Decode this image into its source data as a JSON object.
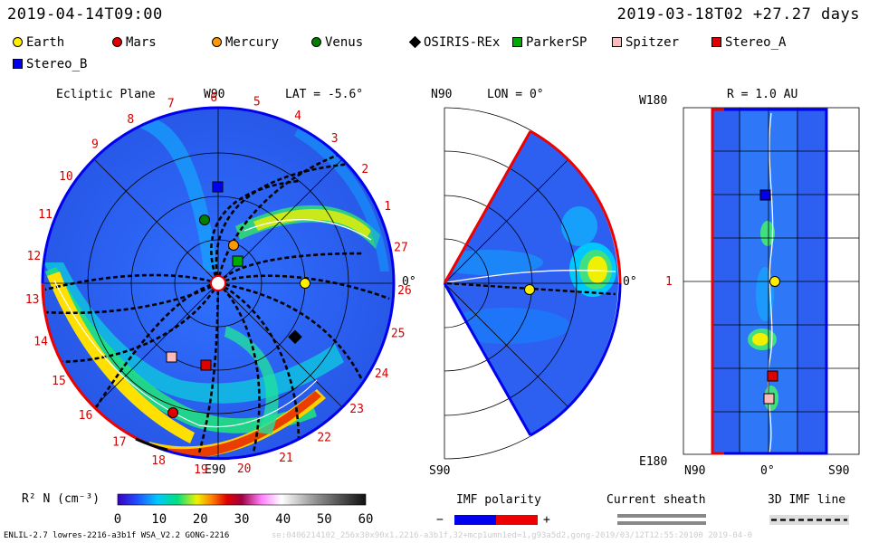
{
  "header": {
    "date_left": "2019-04-14T09:00",
    "date_right": "2019-03-18T02 +27.27 days"
  },
  "legend": [
    {
      "label": "Earth",
      "shape": "circle",
      "color": "#ffee00"
    },
    {
      "label": "Mars",
      "shape": "circle",
      "color": "#e00000"
    },
    {
      "label": "Mercury",
      "shape": "circle",
      "color": "#ff9900"
    },
    {
      "label": "Venus",
      "shape": "circle",
      "color": "#008000"
    },
    {
      "label": "OSIRIS-REx",
      "shape": "diamond",
      "color": "#000000"
    },
    {
      "label": "ParkerSP",
      "shape": "square",
      "color": "#00aa00"
    },
    {
      "label": "Spitzer",
      "shape": "square",
      "color": "#ffbbbb"
    },
    {
      "label": "Stereo_A",
      "shape": "square",
      "color": "#e00000"
    },
    {
      "label": "Stereo_B",
      "shape": "square",
      "color": "#0000ee"
    }
  ],
  "panels": {
    "ecliptic": {
      "title": "Ecliptic Plane",
      "top": "W90",
      "lat": "LAT = -5.6°",
      "bottom": "E90",
      "right": "0°",
      "day_ticks": [
        "1",
        "2",
        "3",
        "4",
        "5",
        "6",
        "7",
        "8",
        "9",
        "10",
        "11",
        "12",
        "13",
        "14",
        "15",
        "16",
        "17",
        "18",
        "19",
        "20",
        "21",
        "22",
        "23",
        "24",
        "25",
        "26",
        "27"
      ]
    },
    "meridional": {
      "top": "N90",
      "lon": "LON = 0°",
      "bottom": "S90",
      "right": "0°"
    },
    "radial": {
      "top_left": "W180",
      "title": "R = 1.0 AU",
      "mid_left": "1",
      "bottom_left": "E180",
      "x_labels": [
        "N90",
        "0°",
        "S90"
      ]
    }
  },
  "colorbar": {
    "label": "R² N (cm⁻³)",
    "ticks": [
      "0",
      "10",
      "20",
      "30",
      "40",
      "50",
      "60"
    ],
    "range": [
      0,
      60
    ]
  },
  "imf": {
    "title": "IMF polarity",
    "minus": "−",
    "plus": "+",
    "neg_color": "#0000ee",
    "pos_color": "#ee0000"
  },
  "current_sheath": {
    "title": "Current sheath"
  },
  "imf_line": {
    "title": "3D IMF line"
  },
  "footer": {
    "model": "ENLIL-2.7 lowres-2216-a3b1f WSA_V2.2 GONG-2216",
    "run": "se:0406214102_256x30x90x1,2216-a3b1f,32+mcp1umn1ed=1,g93a5d2,gong-2019/03/12T12:55:20100    2019-04-0"
  },
  "chart_data": {
    "type": "heatmap",
    "title": "",
    "variable": "R² N (cm⁻³)",
    "colorbar_range": [
      0,
      60
    ],
    "colorbar_ticks": [
      0,
      10,
      20,
      30,
      40,
      50,
      60
    ],
    "panels": [
      "Ecliptic Plane",
      "LON = 0°",
      "R = 1.0 AU"
    ],
    "carrington_day_ticks": [
      1,
      2,
      3,
      4,
      5,
      6,
      7,
      8,
      9,
      10,
      11,
      12,
      13,
      14,
      15,
      16,
      17,
      18,
      19,
      20,
      21,
      22,
      23,
      24,
      25,
      26,
      27
    ],
    "objects_shown": [
      "Earth",
      "Mars",
      "Mercury",
      "Venus",
      "OSIRIS-REx",
      "ParkerSP",
      "Spitzer",
      "Stereo_A",
      "Stereo_B"
    ]
  }
}
